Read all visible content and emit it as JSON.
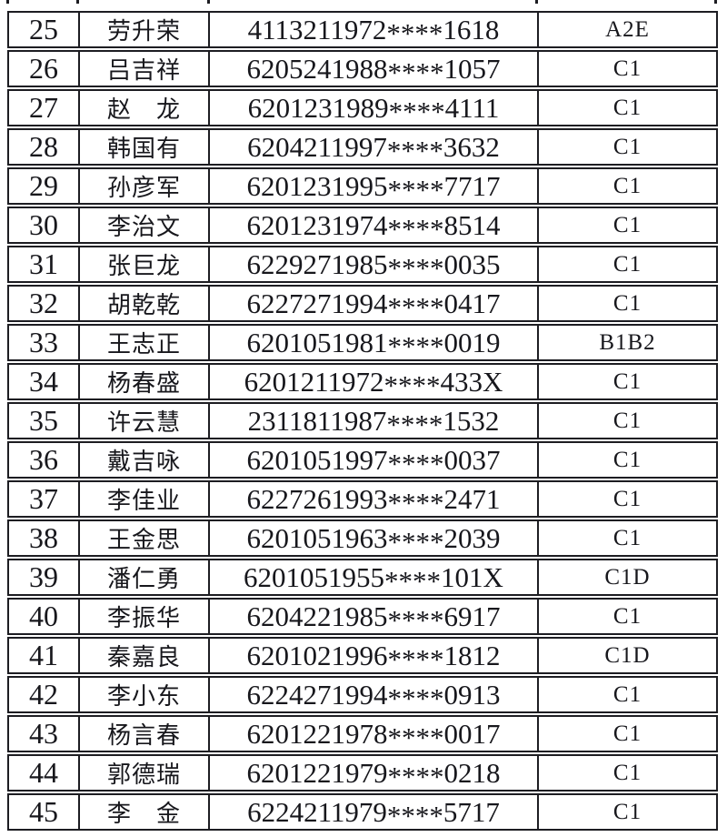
{
  "colors": {
    "background": "#ffffff",
    "border": "#1d1d22",
    "text": "#17171c"
  },
  "table": {
    "columns": [
      "row-number",
      "name",
      "id-number-masked",
      "license-class"
    ],
    "rows": [
      {
        "no": "25",
        "name": "劳升荣",
        "id": "4113211972****1618",
        "license": "A2E"
      },
      {
        "no": "26",
        "name": "吕吉祥",
        "id": "6205241988****1057",
        "license": "C1"
      },
      {
        "no": "27",
        "name": "赵　龙",
        "id": "6201231989****4111",
        "license": "C1"
      },
      {
        "no": "28",
        "name": "韩国有",
        "id": "6204211997****3632",
        "license": "C1"
      },
      {
        "no": "29",
        "name": "孙彦军",
        "id": "6201231995****7717",
        "license": "C1"
      },
      {
        "no": "30",
        "name": "李治文",
        "id": "6201231974****8514",
        "license": "C1"
      },
      {
        "no": "31",
        "name": "张巨龙",
        "id": "6229271985****0035",
        "license": "C1"
      },
      {
        "no": "32",
        "name": "胡乾乾",
        "id": "6227271994****0417",
        "license": "C1"
      },
      {
        "no": "33",
        "name": "王志正",
        "id": "6201051981****0019",
        "license": "B1B2"
      },
      {
        "no": "34",
        "name": "杨春盛",
        "id": "6201211972****433X",
        "license": "C1"
      },
      {
        "no": "35",
        "name": "许云慧",
        "id": "2311811987****1532",
        "license": "C1"
      },
      {
        "no": "36",
        "name": "戴吉咏",
        "id": "6201051997****0037",
        "license": "C1"
      },
      {
        "no": "37",
        "name": "李佳业",
        "id": "6227261993****2471",
        "license": "C1"
      },
      {
        "no": "38",
        "name": "王金思",
        "id": "6201051963****2039",
        "license": "C1"
      },
      {
        "no": "39",
        "name": "潘仁勇",
        "id": "6201051955****101X",
        "license": "C1D"
      },
      {
        "no": "40",
        "name": "李振华",
        "id": "6204221985****6917",
        "license": "C1"
      },
      {
        "no": "41",
        "name": "秦嘉良",
        "id": "6201021996****1812",
        "license": "C1D"
      },
      {
        "no": "42",
        "name": "李小东",
        "id": "6224271994****0913",
        "license": "C1"
      },
      {
        "no": "43",
        "name": "杨言春",
        "id": "6201221978****0017",
        "license": "C1"
      },
      {
        "no": "44",
        "name": "郭德瑞",
        "id": "6201221979****0218",
        "license": "C1"
      },
      {
        "no": "45",
        "name": "李　金",
        "id": "6224211979****5717",
        "license": "C1"
      }
    ]
  }
}
